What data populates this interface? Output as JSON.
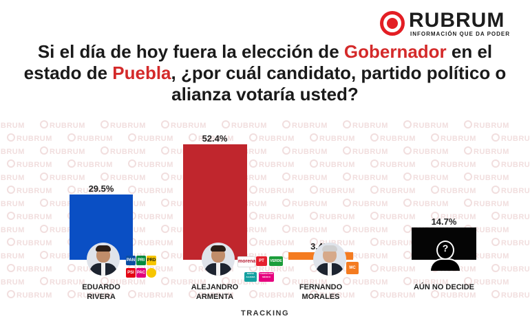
{
  "brand": {
    "name": "RUBRUM",
    "tagline": "INFORMACIÓN QUE DA PODER",
    "accent": "#e31e24",
    "watermark": "RUBRUM"
  },
  "question": {
    "p1": "Si el día de hoy fuera la elección de ",
    "h1": "Gobernador",
    "p2": " en el estado de ",
    "h2": "Puebla",
    "p3": ", ¿por cuál candidato, partido político o alianza votaría usted?",
    "highlight_color": "#d42a2a"
  },
  "chart_data": {
    "type": "bar",
    "categories": [
      "EDUARDO RIVERA",
      "ALEJANDRO ARMENTA",
      "FERNANDO MORALES",
      "AÚN NO DECIDE"
    ],
    "series": [
      {
        "values": [
          29.5,
          52.4,
          3.4,
          14.7
        ]
      }
    ],
    "value_labels": [
      "29.5%",
      "52.4%",
      "3.4%",
      "14.7%"
    ],
    "colors": [
      "#0a4fc4",
      "#c0262d",
      "#f47b20",
      "#050505"
    ],
    "ylim": [
      0,
      52.4
    ],
    "grid": false
  },
  "candidates": [
    {
      "first": "EDUARDO",
      "last": "RIVERA",
      "parties": [
        "PAN",
        "PRI",
        "PRD",
        "PSI",
        "PAC"
      ]
    },
    {
      "first": "ALEJANDRO",
      "last": "ARMENTA",
      "parties": [
        "morena",
        "PT",
        "VERDE",
        "FUERZA POR MÉXICO",
        "NUEVA ALIANZA"
      ]
    },
    {
      "first": "FERNANDO",
      "last": "MORALES",
      "parties": [
        "MC"
      ]
    },
    {
      "first": "AÚN NO DECIDE",
      "last": "",
      "parties": []
    }
  ],
  "party_colors": {
    "PAN": "#0b4ea2",
    "PRI": "#008a3e",
    "PRD": "#f7c600",
    "PSI": "#e30613",
    "PAC": "#e2007a",
    "morena": "#b5192f",
    "PT": "#e5202e",
    "VERDE": "#1b9d3a",
    "FUERZA POR MÉXICO": "#e6007e",
    "NUEVA ALIANZA": "#14a0a0",
    "MC": "#f47b20"
  },
  "footer": {
    "label": "TRACKING"
  }
}
